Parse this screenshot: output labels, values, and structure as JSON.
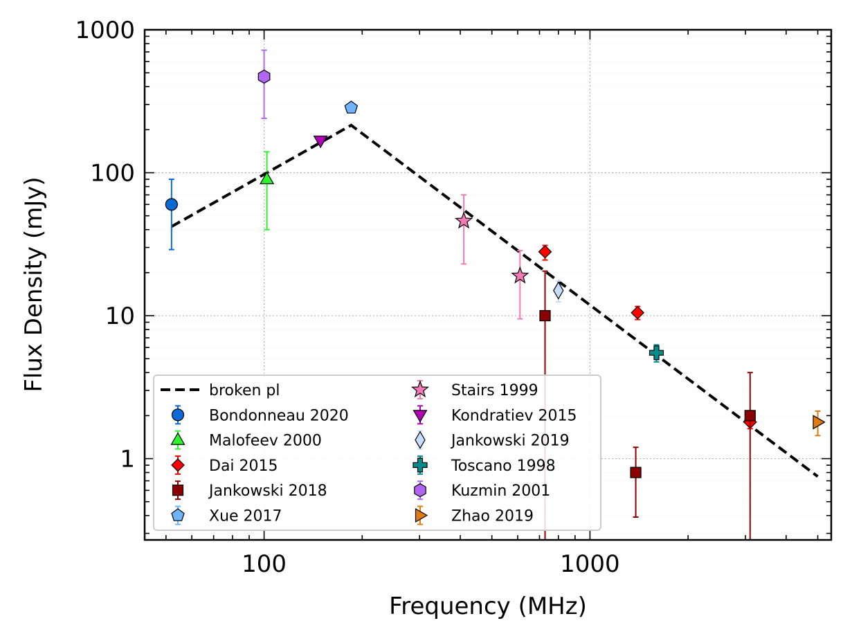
{
  "chart_data": {
    "type": "scatter",
    "xlabel": "Frequency (MHz)",
    "ylabel": "Flux Density (mJy)",
    "xscale": "log",
    "yscale": "log",
    "xlim": [
      43,
      5500
    ],
    "ylim": [
      0.27,
      1000
    ],
    "grid": true,
    "legend_location": "lower-left",
    "x_ticks": [
      {
        "value": 100,
        "label": "100"
      },
      {
        "value": 1000,
        "label": "1000"
      }
    ],
    "y_ticks": [
      {
        "value": 1,
        "label": "1"
      },
      {
        "value": 10,
        "label": "10"
      },
      {
        "value": 100,
        "label": "100"
      },
      {
        "value": 1000,
        "label": "1000"
      }
    ],
    "model": {
      "name": "broken pl",
      "color": "#000000",
      "points": [
        [
          52,
          42
        ],
        [
          185,
          215
        ],
        [
          5000,
          0.75
        ]
      ]
    },
    "series": [
      {
        "name": "Bondonneau 2020",
        "marker": "circle",
        "color": "#0b6ad6",
        "points": [
          {
            "x": 52,
            "y": 60,
            "yerr_low": 29,
            "yerr_high": 90
          }
        ]
      },
      {
        "name": "Malofeev 2000",
        "marker": "triangle-up",
        "color": "#2ef52e",
        "points": [
          {
            "x": 102,
            "y": 90,
            "yerr_low": 40,
            "yerr_high": 140
          }
        ]
      },
      {
        "name": "Dai 2015",
        "marker": "diamond",
        "color": "#ff0000",
        "points": [
          {
            "x": 728,
            "y": 28,
            "yerr_low": 24.5,
            "yerr_high": 31
          },
          {
            "x": 1400,
            "y": 10.5,
            "yerr_low": 9.4,
            "yerr_high": 11.6
          },
          {
            "x": 3100,
            "y": 1.8,
            "yerr_low": 1.62,
            "yerr_high": 1.98
          }
        ]
      },
      {
        "name": "Jankowski 2018",
        "marker": "square",
        "color": "#8b0000",
        "points": [
          {
            "x": 728,
            "y": 10,
            "yerr_low": 0.27,
            "yerr_high": 20.5
          },
          {
            "x": 1382,
            "y": 0.8,
            "yerr_low": 0.39,
            "yerr_high": 1.2
          },
          {
            "x": 3100,
            "y": 2,
            "yerr_low": 0.27,
            "yerr_high": 4
          }
        ]
      },
      {
        "name": "Xue 2017",
        "marker": "pentagon",
        "color": "#6fb4fb",
        "points": [
          {
            "x": 185,
            "y": 285
          }
        ]
      },
      {
        "name": "Stairs 1999",
        "marker": "star",
        "color": "#f27ab6",
        "points": [
          {
            "x": 410,
            "y": 46,
            "yerr_low": 23,
            "yerr_high": 70
          },
          {
            "x": 610,
            "y": 19,
            "yerr_low": 9.5,
            "yerr_high": 28.5
          }
        ]
      },
      {
        "name": "Kondratiev 2015",
        "marker": "triangle-down",
        "color": "#b000b5",
        "points": [
          {
            "x": 149,
            "y": 168
          }
        ]
      },
      {
        "name": "Jankowski 2019",
        "marker": "thin-diamond",
        "color": "#c6defb",
        "points": [
          {
            "x": 800,
            "y": 15,
            "yerr_low": 12.5,
            "yerr_high": 17.5
          }
        ]
      },
      {
        "name": "Toscano 1998",
        "marker": "plus",
        "color": "#078a8a",
        "points": [
          {
            "x": 1600,
            "y": 5.5,
            "yerr_low": 4.75,
            "yerr_high": 6.25
          }
        ]
      },
      {
        "name": "Kuzmin 2001",
        "marker": "hexagon",
        "color": "#b265f0",
        "points": [
          {
            "x": 100,
            "y": 470,
            "yerr_low": 240,
            "yerr_high": 720
          }
        ]
      },
      {
        "name": "Zhao 2019",
        "marker": "triangle-right",
        "color": "#df7b0f",
        "points": [
          {
            "x": 5000,
            "y": 1.8,
            "yerr_low": 1.45,
            "yerr_high": 2.15
          }
        ]
      }
    ]
  }
}
